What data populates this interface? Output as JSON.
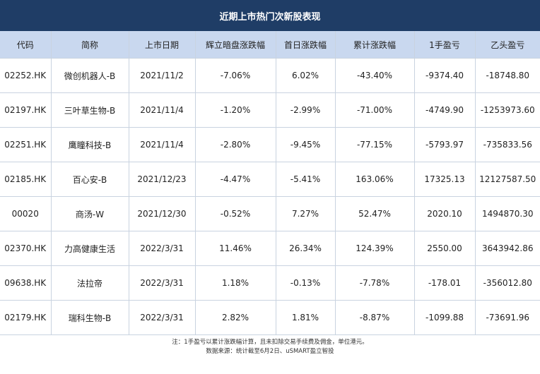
{
  "title": "近期上市热门次新股表现",
  "columns": [
    "代码",
    "简称",
    "上市日期",
    "辉立暗盘涨跌幅",
    "首日涨跌幅",
    "累计涨跌幅",
    "1手盈亏",
    "乙头盈亏"
  ],
  "rows": [
    [
      "02252.HK",
      "微创机器人-B",
      "2021/11/2",
      "-7.06%",
      "6.02%",
      "-43.40%",
      "-9374.40",
      "-18748.80"
    ],
    [
      "02197.HK",
      "三叶草生物-B",
      "2021/11/4",
      "-1.20%",
      "-2.99%",
      "-71.00%",
      "-4749.90",
      "-1253973.60"
    ],
    [
      "02251.HK",
      "鹰瞳科技-B",
      "2021/11/4",
      "-2.80%",
      "-9.45%",
      "-77.15%",
      "-5793.97",
      "-735833.56"
    ],
    [
      "02185.HK",
      "百心安-B",
      "2021/12/23",
      "-4.47%",
      "-5.41%",
      "163.06%",
      "17325.13",
      "12127587.50"
    ],
    [
      "00020",
      "商汤-W",
      "2021/12/30",
      "-0.52%",
      "7.27%",
      "52.47%",
      "2020.10",
      "1494870.30"
    ],
    [
      "02370.HK",
      "力高健康生活",
      "2022/3/31",
      "11.46%",
      "26.34%",
      "124.39%",
      "2550.00",
      "3643942.86"
    ],
    [
      "09638.HK",
      "法拉帝",
      "2022/3/31",
      "1.18%",
      "-0.13%",
      "-7.78%",
      "-178.01",
      "-356012.80"
    ],
    [
      "02179.HK",
      "瑞科生物-B",
      "2022/3/31",
      "2.82%",
      "1.81%",
      "-8.87%",
      "-1099.88",
      "-73691.96"
    ]
  ],
  "note_line1": "注：1手盈亏以累计涨跌幅计算，且未扣除交易手续费及佣金，单位港元。",
  "note_line2": "数据来源：统计截至6月2日、uSMART盈立智投"
}
